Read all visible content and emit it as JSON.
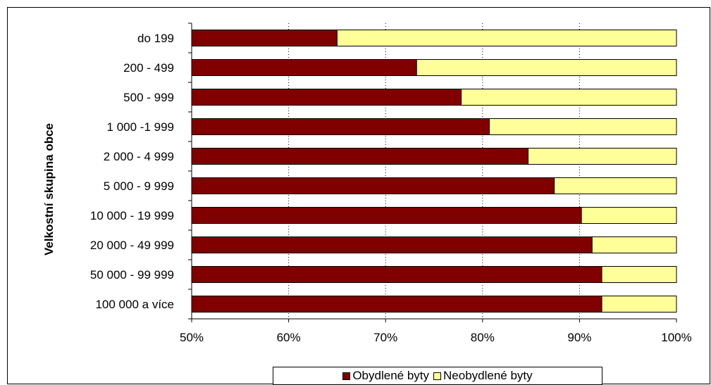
{
  "chart_data": {
    "type": "bar",
    "orientation": "horizontal",
    "stacked": true,
    "normalized": true,
    "title": "",
    "xlabel": "",
    "ylabel": "Velkostní skupina obce",
    "xlim": [
      50,
      100
    ],
    "x_ticks": [
      "50%",
      "60%",
      "70%",
      "80%",
      "90%",
      "100%"
    ],
    "x_tick_values": [
      50,
      60,
      70,
      80,
      90,
      100
    ],
    "categories": [
      "do 199",
      "200 - 499",
      "500 - 999",
      "1 000 -1 999",
      "2 000 - 4 999",
      "5 000 - 9 999",
      "10 000 - 19 999",
      "20 000 - 49 999",
      "50 000 - 99 999",
      "100 000 a více"
    ],
    "series": [
      {
        "name": "Obydlené byty",
        "color": "#800000",
        "values": [
          65,
          73.2,
          77.8,
          80.7,
          84.7,
          87.4,
          90.2,
          91.3,
          92.3,
          92.3
        ]
      },
      {
        "name": "Neobydlené byty",
        "color": "#ffff99",
        "values": [
          35,
          26.8,
          22.2,
          19.3,
          15.3,
          12.6,
          9.8,
          8.7,
          7.7,
          7.7
        ]
      }
    ],
    "grid": "vertical dotted",
    "legend_position": "bottom"
  }
}
